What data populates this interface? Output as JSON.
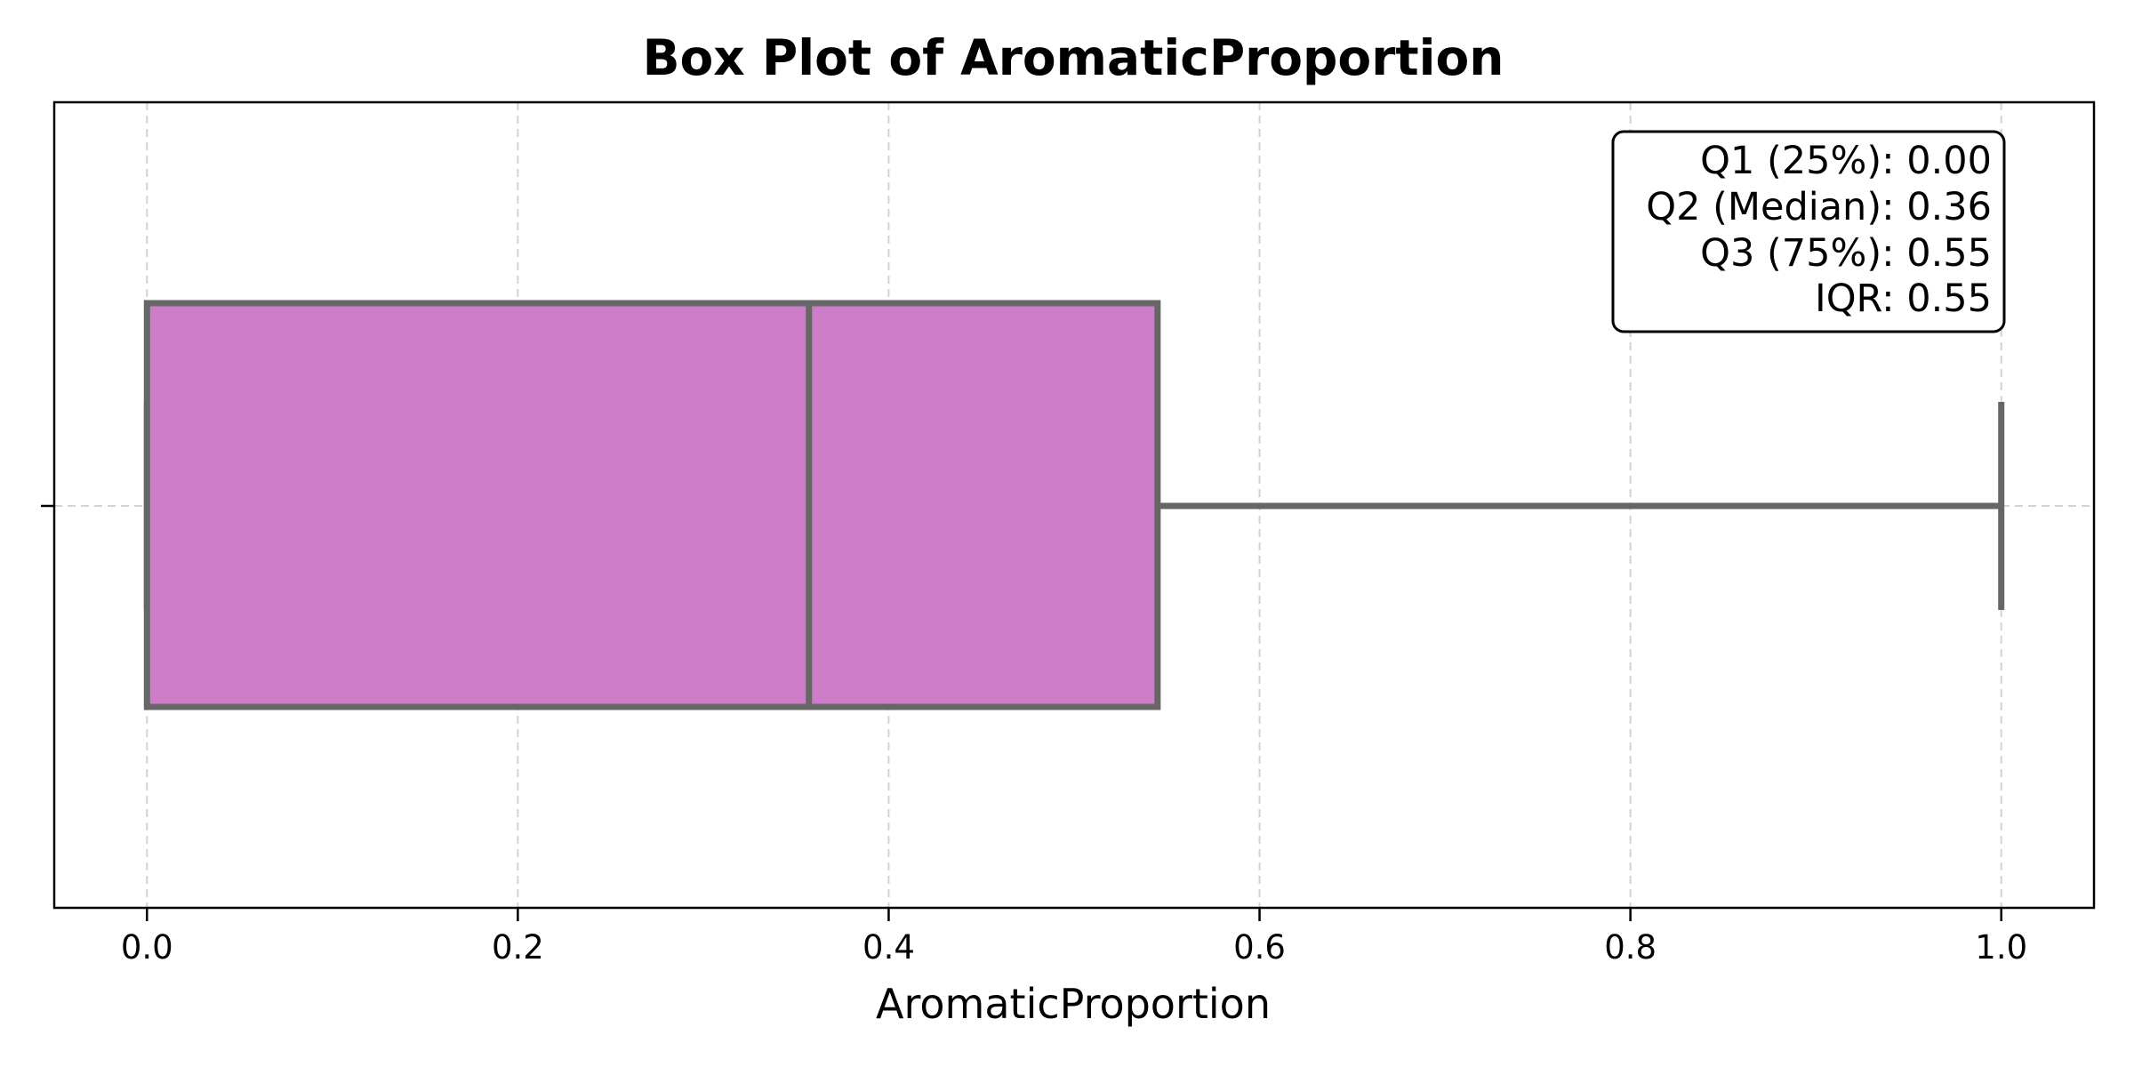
{
  "chart_data": {
    "type": "box",
    "title": "Box Plot of AromaticProportion",
    "xlabel": "AromaticProportion",
    "ylabel": "",
    "xlim": [
      -0.05,
      1.05
    ],
    "x_ticks": [
      0.0,
      0.2,
      0.4,
      0.6,
      0.8,
      1.0
    ],
    "x_tick_labels": [
      "0.0",
      "0.2",
      "0.4",
      "0.6",
      "0.8",
      "1.0"
    ],
    "grid": true,
    "orientation": "horizontal",
    "box": {
      "whisker_low": 0.0,
      "q1": 0.0,
      "median": 0.357,
      "q3": 0.545,
      "whisker_high": 1.0
    },
    "stats_box": {
      "placement": "top-right",
      "lines": [
        "Q1 (25%): 0.00",
        "Q2 (Median): 0.36",
        "Q3 (75%): 0.55",
        "IQR: 0.55"
      ]
    },
    "colors": {
      "box_fill": "#CD7DC8",
      "box_edge": "#666666",
      "grid": "#d3d3d3",
      "axes": "#000000"
    }
  }
}
